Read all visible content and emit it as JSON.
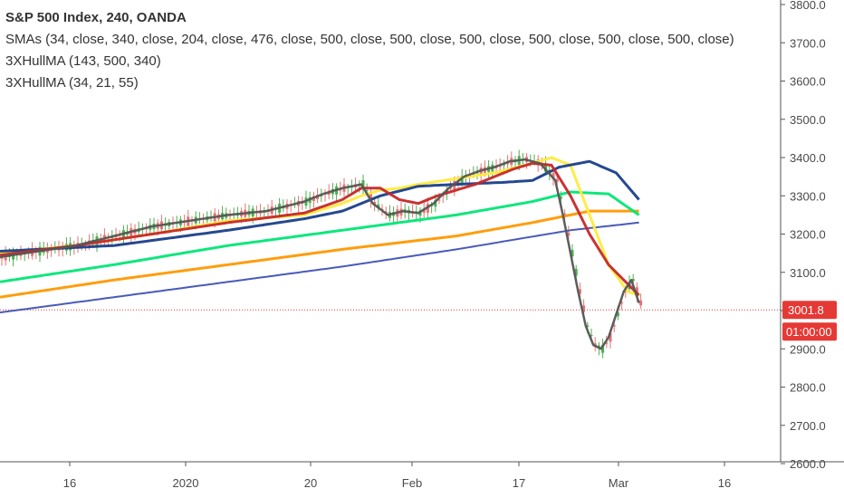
{
  "legend": {
    "title": "S&P 500 Index, 240, OANDA",
    "sma": "SMAs (34, close, 340, close, 204, close, 476, close, 500, close, 500, close, 500, close, 500, close, 500, close, 500, close)",
    "hull1": "3XHullMA (143, 500, 340)",
    "hull2": "3XHullMA (34, 21, 55)"
  },
  "chart_data": {
    "type": "line",
    "title": "S&P 500 Index, 240, OANDA",
    "ylim": [
      2600,
      3800
    ],
    "y_ticks": [
      "2600.0",
      "2700.0",
      "2800.0",
      "2900.0",
      "3000.0",
      "3100.0",
      "3200.0",
      "3300.0",
      "3400.0",
      "3500.0",
      "3600.0",
      "3700.0",
      "3800.0"
    ],
    "x_ticks": [
      "16",
      "2020",
      "20",
      "Feb",
      "17",
      "Mar",
      "16"
    ],
    "last_price": "3001.8",
    "countdown": "01:00:00",
    "colors": {
      "up": "#4caf50",
      "down": "#e57373",
      "price_line": "#e53935",
      "sma34": "#c62828",
      "sma340": "#ff9800",
      "sma204": "#00e676",
      "sma476": "#3f51b5",
      "hull_fast": "#555555",
      "hull_slow": "#1a3e8a",
      "hull_mid": "#ffeb3b"
    },
    "series": [
      {
        "key": "hull_slow",
        "x": [
          0,
          30,
          60,
          80,
          90,
          100,
          110,
          120,
          132,
          140,
          147,
          155,
          162,
          168
        ],
        "values": [
          3155,
          3170,
          3210,
          3240,
          3260,
          3300,
          3325,
          3330,
          3335,
          3340,
          3375,
          3390,
          3360,
          3290
        ]
      },
      {
        "key": "hull_mid",
        "x": [
          0,
          20,
          40,
          60,
          80,
          90,
          95,
          100,
          105,
          110,
          120,
          130,
          140,
          145,
          150,
          155,
          160,
          165,
          168
        ],
        "values": [
          3150,
          3170,
          3200,
          3235,
          3250,
          3280,
          3300,
          3315,
          3320,
          3330,
          3345,
          3360,
          3385,
          3400,
          3380,
          3250,
          3120,
          3050,
          3040
        ]
      },
      {
        "key": "sma34",
        "x": [
          0,
          20,
          40,
          60,
          80,
          90,
          95,
          100,
          105,
          110,
          115,
          120,
          125,
          130,
          135,
          140,
          145,
          150,
          155,
          160,
          165,
          168
        ],
        "values": [
          3145,
          3170,
          3200,
          3230,
          3255,
          3290,
          3320,
          3320,
          3290,
          3280,
          3300,
          3315,
          3330,
          3350,
          3370,
          3385,
          3380,
          3300,
          3200,
          3120,
          3070,
          3040
        ]
      },
      {
        "key": "hull_fast",
        "x": [
          0,
          10,
          20,
          30,
          40,
          50,
          60,
          70,
          80,
          85,
          90,
          95,
          98,
          102,
          106,
          110,
          114,
          118,
          122,
          126,
          130,
          134,
          138,
          142,
          146,
          148,
          150,
          152,
          154,
          156,
          158,
          160,
          162,
          164,
          166,
          168
        ],
        "values": [
          3140,
          3155,
          3170,
          3195,
          3220,
          3235,
          3250,
          3260,
          3285,
          3305,
          3320,
          3330,
          3280,
          3250,
          3260,
          3255,
          3280,
          3320,
          3350,
          3365,
          3375,
          3390,
          3395,
          3385,
          3340,
          3250,
          3150,
          3050,
          2960,
          2910,
          2900,
          2930,
          2990,
          3050,
          3080,
          3020
        ]
      },
      {
        "key": "sma204",
        "x": [
          0,
          30,
          60,
          90,
          120,
          140,
          150,
          160,
          168
        ],
        "values": [
          3075,
          3120,
          3170,
          3210,
          3250,
          3285,
          3310,
          3305,
          3250
        ]
      },
      {
        "key": "sma340",
        "x": [
          0,
          30,
          60,
          90,
          120,
          140,
          155,
          168
        ],
        "values": [
          3035,
          3080,
          3120,
          3160,
          3195,
          3230,
          3260,
          3260
        ]
      },
      {
        "key": "sma476",
        "x": [
          0,
          30,
          60,
          90,
          120,
          150,
          168
        ],
        "values": [
          2995,
          3035,
          3075,
          3115,
          3160,
          3210,
          3230
        ]
      }
    ]
  }
}
